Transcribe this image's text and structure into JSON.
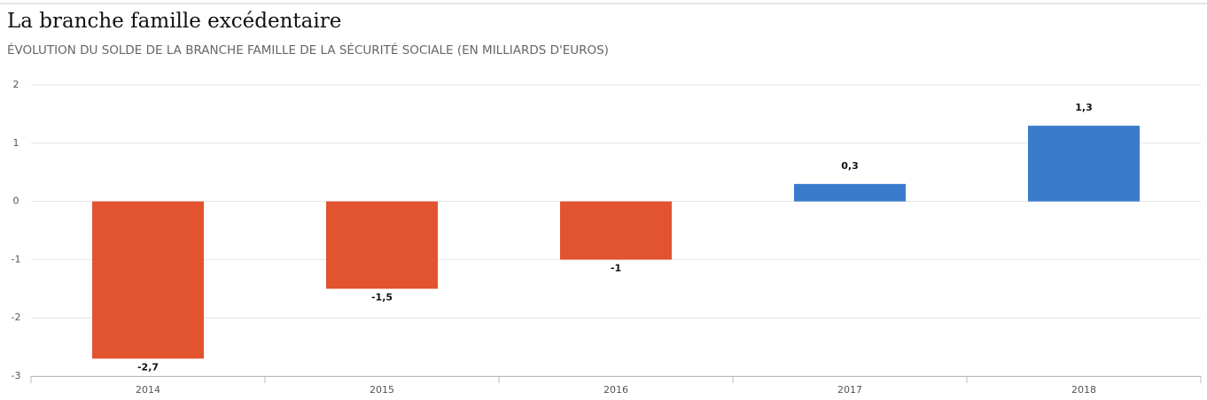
{
  "chart_data": {
    "type": "bar",
    "title": "La branche famille excédentaire",
    "subtitle": "ÉVOLUTION DU SOLDE DE LA BRANCHE FAMILLE DE LA SÉCURITÉ SOCIALE (EN MILLIARDS D'EUROS)",
    "categories": [
      "2014",
      "2015",
      "2016",
      "2017",
      "2018"
    ],
    "values": [
      -2.7,
      -1.5,
      -1,
      0.3,
      1.3
    ],
    "value_labels": [
      "-2,7",
      "-1,5",
      "-1",
      "0,3",
      "1,3"
    ],
    "colors": [
      "#e2532f",
      "#e2532f",
      "#e2532f",
      "#3a7bcc",
      "#3a7bcc"
    ],
    "ylim": [
      -3,
      2
    ],
    "yticks": [
      -3,
      -2,
      -1,
      0,
      1,
      2
    ],
    "grid": true
  }
}
